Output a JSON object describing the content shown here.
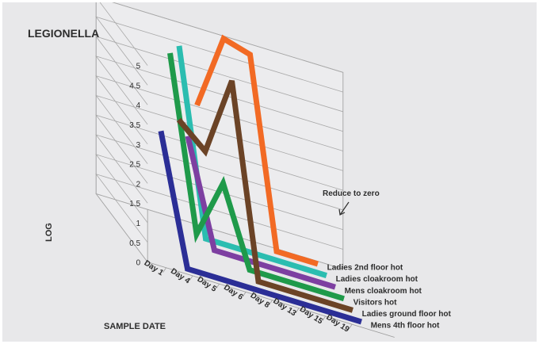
{
  "chart_data": {
    "type": "line",
    "title": "LEGIONELLA",
    "xlabel": "SAMPLE DATE",
    "ylabel": "LOG",
    "ylim": [
      0,
      5
    ],
    "yticks": [
      "0",
      "0.5",
      "1",
      "1.5",
      "2",
      "2.5",
      "3",
      "3.5",
      "4",
      "4.5",
      "5"
    ],
    "categories": [
      "Day 1",
      "Day 4",
      "Day 5",
      "Day 6",
      "Day 8",
      "Day 13",
      "Day 15",
      "Day 19"
    ],
    "grid": true,
    "three_d": true,
    "series": [
      {
        "name": "Mens 4th floor hot",
        "color": "#2b2e96",
        "values": [
          3.3,
          0,
          0,
          0,
          0,
          0,
          0,
          0
        ]
      },
      {
        "name": "Ladies ground floor hot",
        "color": "#6b4326",
        "values": [
          null,
          3.5,
          2.9,
          4.9,
          0,
          0,
          0,
          0
        ]
      },
      {
        "name": "Visitors hot",
        "color": "#1f9a4a",
        "values": [
          null,
          4.9,
          0.5,
          2.0,
          0,
          0,
          0,
          0
        ]
      },
      {
        "name": "Mens cloakroom hot",
        "color": "#7d3fa1",
        "values": [
          null,
          null,
          2.7,
          0,
          0,
          0,
          0,
          0
        ]
      },
      {
        "name": "Ladies cloakroom hot",
        "color": "#2bbdb0",
        "values": [
          null,
          null,
          4.7,
          0,
          0,
          0,
          0,
          0
        ]
      },
      {
        "name": "Ladies 2nd floor hot",
        "color": "#f26a24",
        "values": [
          null,
          null,
          null,
          3.1,
          5.0,
          4.8,
          0,
          0
        ]
      }
    ],
    "annotations": [
      "Reduce to zero"
    ]
  }
}
